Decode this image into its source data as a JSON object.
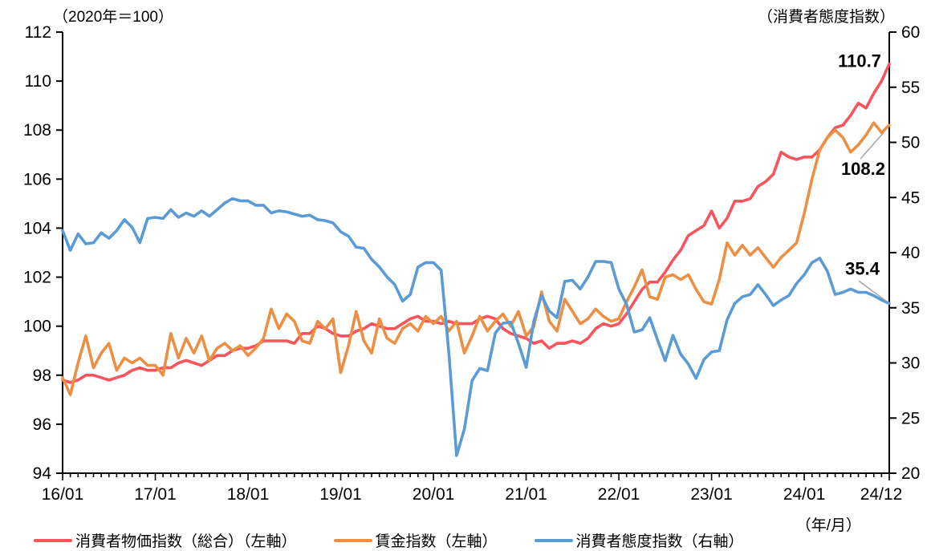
{
  "chart_data": {
    "type": "line",
    "title": "",
    "left_axis": {
      "label": "（2020年＝100）",
      "min": 94,
      "max": 112,
      "tick_step": 2,
      "tick_labels": [
        "94",
        "96",
        "98",
        "100",
        "102",
        "104",
        "106",
        "108",
        "110",
        "112"
      ]
    },
    "right_axis": {
      "label": "（消費者態度指数）",
      "min": 20,
      "max": 60,
      "tick_step": 5,
      "tick_labels": [
        "20",
        "25",
        "30",
        "35",
        "40",
        "45",
        "50",
        "55",
        "60"
      ]
    },
    "x_axis": {
      "unit_label": "（年/月）",
      "start": "2016/01",
      "end": "2024/12",
      "freq": "monthly",
      "tick_labels": [
        "16/01",
        "17/01",
        "18/01",
        "19/01",
        "20/01",
        "21/01",
        "22/01",
        "23/01",
        "24/01",
        "24/12"
      ],
      "minor_tick_every_month": true
    },
    "grid": "off",
    "legend_position": "bottom",
    "annotation_color": "#000000",
    "leader_line_color": "#a6a6a6",
    "axis_color": "#000000",
    "series": [
      {
        "name": "消費者物価指数（総合）（左軸）",
        "axis": "left",
        "color": "#f8545e",
        "end_label": "110.7",
        "values": [
          97.8,
          97.7,
          97.8,
          98.0,
          98.0,
          97.9,
          97.8,
          97.9,
          98.0,
          98.2,
          98.3,
          98.2,
          98.2,
          98.3,
          98.3,
          98.5,
          98.6,
          98.5,
          98.4,
          98.6,
          98.8,
          98.8,
          99.0,
          99.1,
          99.1,
          99.2,
          99.4,
          99.4,
          99.4,
          99.4,
          99.3,
          99.7,
          99.7,
          100.0,
          99.9,
          99.7,
          99.6,
          99.6,
          99.8,
          99.9,
          100.1,
          100.0,
          99.9,
          99.9,
          100.1,
          100.3,
          100.4,
          100.2,
          100.2,
          100.1,
          100.2,
          100.1,
          100.1,
          100.1,
          100.3,
          100.4,
          100.3,
          99.9,
          99.7,
          99.6,
          99.5,
          99.3,
          99.4,
          99.1,
          99.3,
          99.3,
          99.4,
          99.3,
          99.5,
          99.9,
          100.1,
          100.0,
          100.1,
          100.5,
          101.0,
          101.5,
          101.8,
          101.8,
          102.2,
          102.7,
          103.1,
          103.7,
          103.9,
          104.1,
          104.7,
          104.0,
          104.4,
          105.1,
          105.1,
          105.2,
          105.7,
          105.9,
          106.2,
          107.1,
          106.9,
          106.8,
          106.9,
          106.9,
          107.2,
          107.7,
          108.1,
          108.2,
          108.6,
          109.1,
          108.9,
          109.5,
          110.0,
          110.7
        ]
      },
      {
        "name": "賃金指数（左軸）",
        "axis": "left",
        "color": "#ec8f44",
        "end_label": "108.2",
        "values": [
          97.9,
          97.2,
          98.5,
          99.6,
          98.3,
          98.9,
          99.3,
          98.2,
          98.7,
          98.5,
          98.7,
          98.4,
          98.4,
          98.0,
          99.7,
          98.7,
          99.5,
          98.9,
          99.6,
          98.6,
          99.1,
          99.3,
          99.0,
          99.2,
          98.8,
          99.1,
          99.5,
          100.7,
          99.9,
          100.5,
          100.2,
          99.4,
          99.3,
          100.2,
          99.9,
          100.3,
          98.1,
          99.2,
          100.6,
          99.4,
          98.9,
          100.3,
          99.5,
          99.3,
          99.9,
          100.1,
          99.8,
          100.4,
          100.1,
          100.4,
          99.8,
          100.2,
          98.9,
          99.6,
          100.4,
          99.8,
          100.2,
          100.5,
          100.0,
          100.6,
          99.6,
          100.0,
          101.4,
          100.2,
          99.8,
          101.1,
          100.6,
          100.1,
          100.3,
          100.7,
          100.4,
          100.2,
          100.3,
          101.0,
          101.6,
          102.3,
          101.2,
          101.1,
          102.0,
          102.1,
          101.9,
          102.1,
          101.5,
          101.0,
          100.9,
          101.9,
          103.4,
          102.9,
          103.3,
          102.9,
          103.2,
          102.8,
          102.4,
          102.8,
          103.1,
          103.4,
          104.6,
          106.0,
          107.2,
          107.7,
          108.0,
          107.7,
          107.1,
          107.4,
          107.8,
          108.3,
          107.9,
          108.2
        ]
      },
      {
        "name": "消費者態度指数（右軸）",
        "axis": "right",
        "color": "#5b9bd5",
        "end_label": "35.4",
        "values": [
          42.0,
          40.2,
          41.7,
          40.8,
          40.9,
          41.8,
          41.3,
          42.0,
          43.0,
          42.3,
          40.9,
          43.1,
          43.2,
          43.1,
          43.9,
          43.2,
          43.6,
          43.3,
          43.8,
          43.3,
          43.9,
          44.5,
          44.9,
          44.7,
          44.7,
          44.3,
          44.3,
          43.6,
          43.8,
          43.7,
          43.5,
          43.3,
          43.4,
          43.0,
          42.9,
          42.7,
          41.9,
          41.5,
          40.5,
          40.4,
          39.4,
          38.7,
          37.8,
          37.1,
          35.6,
          36.2,
          38.7,
          39.1,
          39.1,
          38.4,
          30.9,
          21.6,
          24.0,
          28.4,
          29.5,
          29.3,
          32.7,
          33.6,
          33.7,
          31.8,
          29.6,
          33.8,
          36.1,
          34.7,
          34.1,
          37.4,
          37.5,
          36.7,
          37.8,
          39.2,
          39.2,
          39.1,
          36.7,
          35.3,
          32.8,
          33.0,
          34.1,
          32.1,
          30.2,
          32.5,
          30.8,
          29.9,
          28.6,
          30.3,
          31.0,
          31.1,
          33.9,
          35.4,
          36.0,
          36.2,
          37.1,
          36.2,
          35.2,
          35.7,
          36.1,
          37.2,
          38.0,
          39.1,
          39.5,
          38.3,
          36.2,
          36.4,
          36.7,
          36.4,
          36.4,
          36.1,
          35.7,
          35.4
        ]
      }
    ]
  }
}
